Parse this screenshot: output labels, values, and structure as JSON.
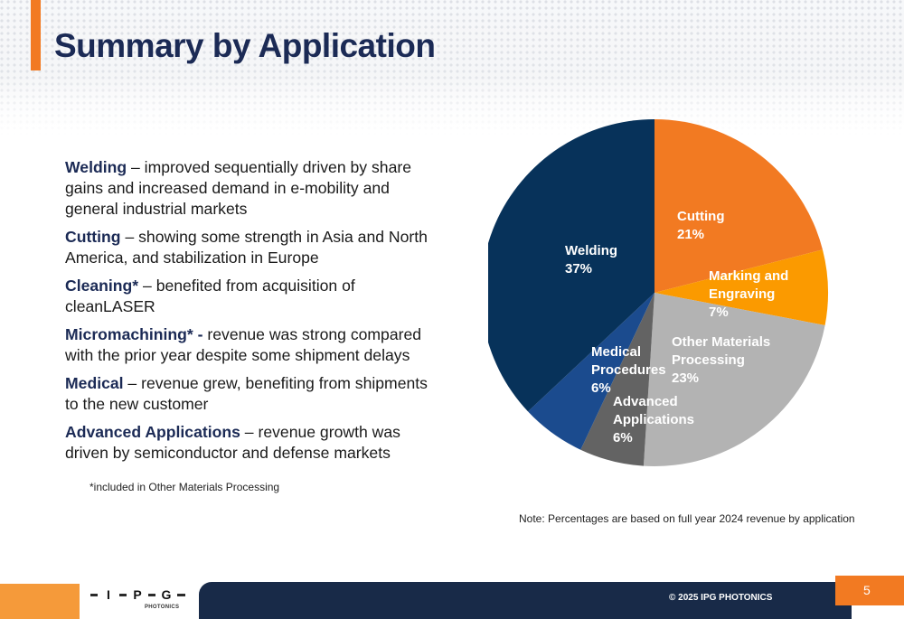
{
  "title": "Summary by Application",
  "bullets": [
    {
      "head": "Welding",
      "rest": " –  improved sequentially driven by share gains and increased demand in e-mobility and general industrial markets"
    },
    {
      "head": "Cutting",
      "rest": " – showing some strength in Asia and North America, and stabilization in Europe"
    },
    {
      "head": "Cleaning*",
      "rest": " –  benefited from acquisition of cleanLASER"
    },
    {
      "head": "Micromachining* -",
      "rest": " revenue was strong compared with the prior year despite some shipment delays"
    },
    {
      "head": "Medical",
      "rest": " – revenue grew, benefiting from shipments to the new customer"
    },
    {
      "head": "Advanced Applications",
      "rest": " – revenue growth was driven by semiconductor and defense markets"
    }
  ],
  "footnote": "*included in Other Materials Processing",
  "note": "Note: Percentages are based on full year 2024 revenue by application",
  "chart_data": {
    "type": "pie",
    "unit": "%",
    "series": [
      {
        "name": "Cutting",
        "value": 21,
        "label": "21%",
        "color": "#f27a22"
      },
      {
        "name": "Marking and Engraving",
        "value": 7,
        "label": "7%",
        "color": "#fb9a00"
      },
      {
        "name": "Other Materials Processing",
        "value": 23,
        "label": "23%",
        "color": "#b3b3b3"
      },
      {
        "name": "Advanced Applications",
        "value": 6,
        "label": "6%",
        "color": "#636363"
      },
      {
        "name": "Medical Procedures",
        "value": 6,
        "label": "6%",
        "color": "#1b4b8e"
      },
      {
        "name": "Welding",
        "value": 37,
        "label": "37%",
        "color": "#07325a"
      }
    ]
  },
  "footer": {
    "logo_letters": [
      "I",
      "P",
      "G"
    ],
    "logo_sub": "PHOTONICS",
    "copyright": "© 2025 IPG PHOTONICS",
    "page_number": "5"
  }
}
